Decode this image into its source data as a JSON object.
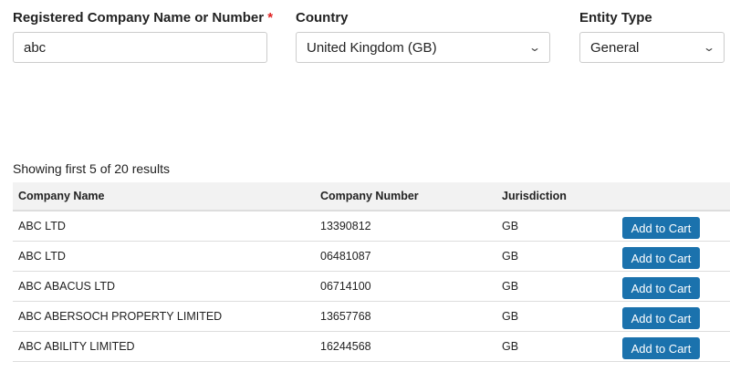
{
  "form": {
    "name_label": "Registered Company Name or Number",
    "required_mark": "*",
    "name_value": "abc",
    "country_label": "Country",
    "country_value": "United Kingdom (GB)",
    "entity_label": "Entity Type",
    "entity_value": "General"
  },
  "results": {
    "status": "Showing first 5 of 20 results",
    "columns": [
      "Company Name",
      "Company Number",
      "Jurisdiction",
      ""
    ],
    "button_label": "Add to Cart",
    "rows": [
      {
        "name": "ABC LTD",
        "number": "13390812",
        "jurisdiction": "GB"
      },
      {
        "name": "ABC LTD",
        "number": "06481087",
        "jurisdiction": "GB"
      },
      {
        "name": "ABC ABACUS LTD",
        "number": "06714100",
        "jurisdiction": "GB"
      },
      {
        "name": "ABC ABERSOCH PROPERTY LIMITED",
        "number": "13657768",
        "jurisdiction": "GB"
      },
      {
        "name": "ABC ABILITY LIMITED",
        "number": "16244568",
        "jurisdiction": "GB"
      }
    ]
  },
  "colors": {
    "button": "#1b72ad",
    "required": "#e02020"
  }
}
